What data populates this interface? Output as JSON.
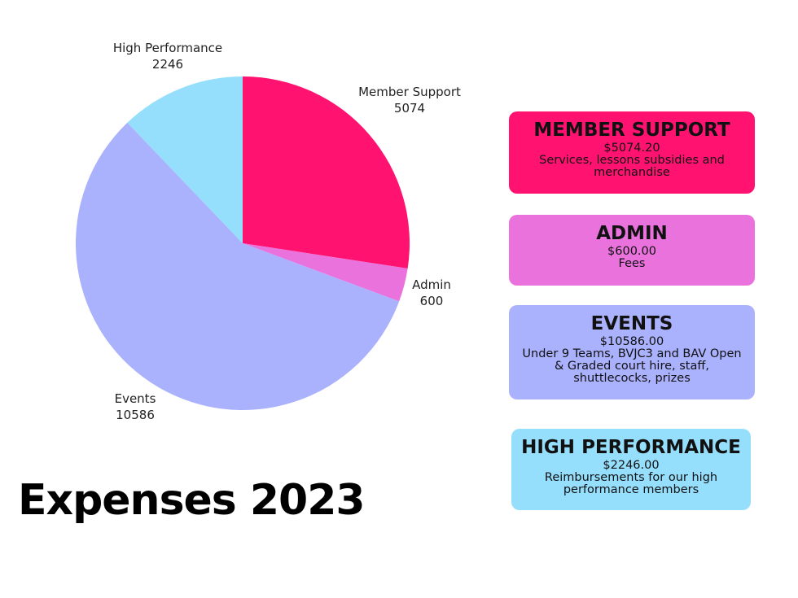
{
  "chart_data": {
    "type": "pie",
    "slices": [
      {
        "label": "Member Support",
        "value": 5074,
        "color": "#ff1270"
      },
      {
        "label": "Admin",
        "value": 600,
        "color": "#ea72dd"
      },
      {
        "label": "Events",
        "value": 10586,
        "color": "#aab1fd"
      },
      {
        "label": "High Performance",
        "value": 2246,
        "color": "#95dffd"
      }
    ],
    "start_angle_deg": 0,
    "direction": "clockwise",
    "title": "Expenses 2023"
  },
  "cards": [
    {
      "title": "MEMBER SUPPORT",
      "amount": "$5074.20",
      "description": "Services, lessons subsidies and merchandise",
      "color": "#ff1270"
    },
    {
      "title": "ADMIN",
      "amount": "$600.00",
      "description": "Fees",
      "color": "#ea72dd"
    },
    {
      "title": "EVENTS",
      "amount": "$10586.00",
      "description": "Under 9 Teams, BVJC3 and BAV Open & Graded court hire, staff, shuttlecocks, prizes",
      "color": "#aab1fd"
    },
    {
      "title": "HIGH PERFORMANCE",
      "amount": "$2246.00",
      "description": "Reimbursements for our high performance members",
      "color": "#95dffd"
    }
  ]
}
